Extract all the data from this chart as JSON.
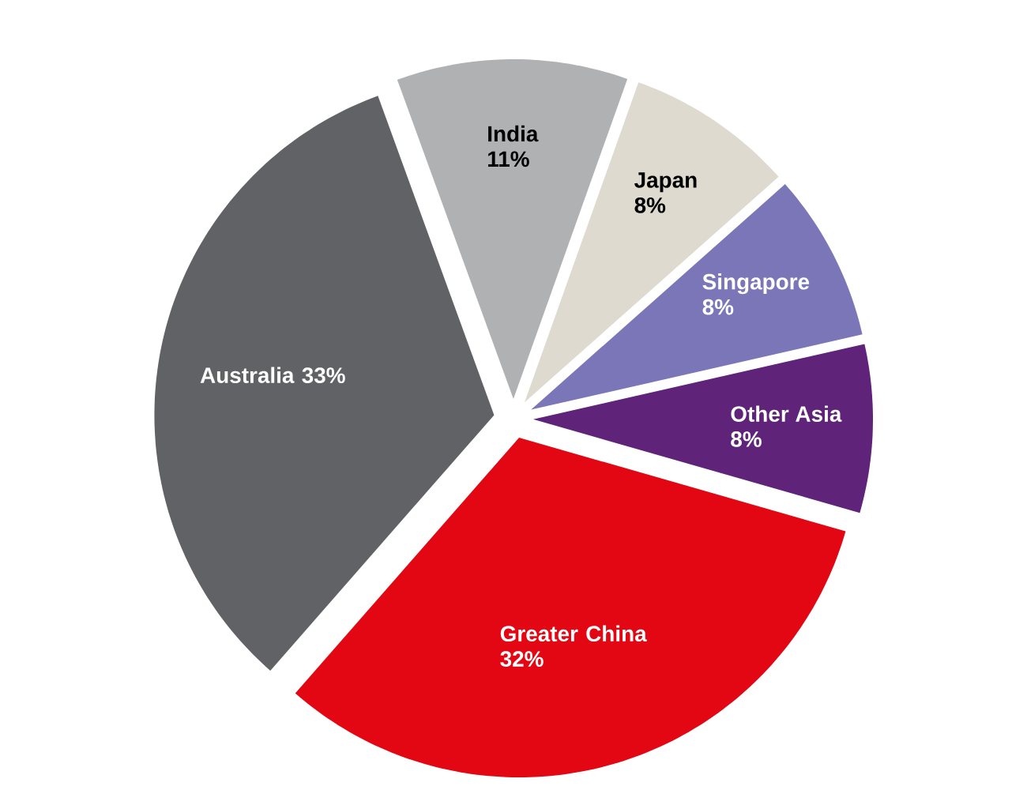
{
  "chart_data": {
    "type": "pie",
    "categories": [
      "India",
      "Japan",
      "Singapore",
      "Other Asia",
      "Greater China",
      "Australia"
    ],
    "values": [
      11,
      8,
      8,
      8,
      32,
      33
    ],
    "value_labels": [
      "11%",
      "8%",
      "8%",
      "8%",
      "32%",
      "33%"
    ],
    "colors": [
      "#b0b1b3",
      "#dedad0",
      "#7b76b8",
      "#5f2379",
      "#e30613",
      "#616265"
    ]
  }
}
